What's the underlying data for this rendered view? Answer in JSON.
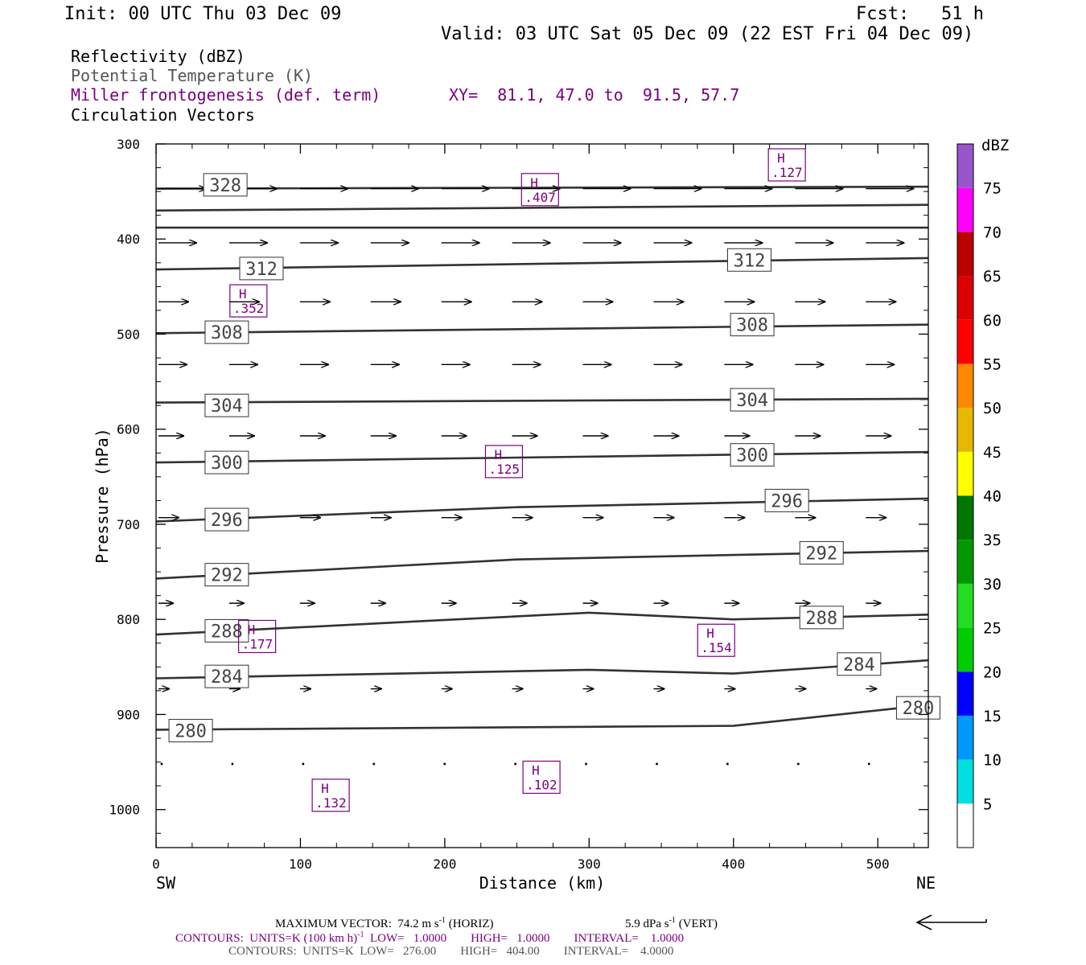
{
  "header": {
    "init": "Init: 00 UTC Thu 03 Dec 09",
    "fcst": "Fcst:   51 h",
    "valid": "Valid: 03 UTC Sat 05 Dec 09 (22 EST Fri 04 Dec 09)"
  },
  "fields": {
    "reflectivity": "Reflectivity (dBZ)",
    "theta": "Potential Temperature (K)",
    "miller": "Miller frontogenesis (def. term)",
    "xy": "XY=  81.1, 47.0 to  91.5, 57.7",
    "vectors": "Circulation Vectors"
  },
  "colors": {
    "purple": "#7a0080",
    "gray": "#555555"
  },
  "chart_data": {
    "type": "line",
    "xlabel": "Distance (km)",
    "ylabel": "Pressure (hPa)",
    "xlim": [
      0,
      535
    ],
    "ylim": [
      1040,
      300
    ],
    "x_ticks": [
      0,
      100,
      200,
      300,
      400,
      500
    ],
    "y_ticks": [
      300,
      400,
      500,
      600,
      700,
      800,
      900,
      1000
    ],
    "left_end_label": "SW",
    "right_end_label": "NE",
    "theta_contours": [
      {
        "label": "328",
        "points": [
          [
            0,
            347
          ],
          [
            535,
            345
          ]
        ],
        "label_at": [
          48,
          343
        ]
      },
      {
        "label": "",
        "points": [
          [
            0,
            370
          ],
          [
            535,
            364
          ]
        ]
      },
      {
        "label": "",
        "points": [
          [
            0,
            388
          ],
          [
            535,
            388
          ]
        ]
      },
      {
        "label": "312",
        "points": [
          [
            0,
            432
          ],
          [
            535,
            420
          ]
        ],
        "label_at": [
          73,
          431
        ]
      },
      {
        "label": "312",
        "points": [],
        "label_at": [
          411,
          422
        ]
      },
      {
        "label": "308",
        "points": [
          [
            0,
            499
          ],
          [
            535,
            490
          ]
        ],
        "label_at": [
          49,
          498
        ]
      },
      {
        "label": "308",
        "points": [],
        "label_at": [
          413,
          490
        ]
      },
      {
        "label": "304",
        "points": [
          [
            0,
            572
          ],
          [
            535,
            568
          ]
        ],
        "label_at": [
          49,
          575
        ]
      },
      {
        "label": "304",
        "points": [],
        "label_at": [
          413,
          569
        ]
      },
      {
        "label": "300",
        "points": [
          [
            0,
            635
          ],
          [
            535,
            624
          ]
        ],
        "label_at": [
          49,
          635
        ]
      },
      {
        "label": "300",
        "points": [],
        "label_at": [
          413,
          627
        ]
      },
      {
        "label": "296",
        "points": [
          [
            0,
            697
          ],
          [
            250,
            682
          ],
          [
            535,
            673
          ]
        ],
        "label_at": [
          49,
          695
        ]
      },
      {
        "label": "296",
        "points": [],
        "label_at": [
          437,
          675
        ]
      },
      {
        "label": "292",
        "points": [
          [
            0,
            757
          ],
          [
            250,
            737
          ],
          [
            535,
            728
          ]
        ],
        "label_at": [
          49,
          753
        ]
      },
      {
        "label": "292",
        "points": [],
        "label_at": [
          461,
          730
        ]
      },
      {
        "label": "288",
        "points": [
          [
            0,
            816
          ],
          [
            300,
            793
          ],
          [
            400,
            800
          ],
          [
            535,
            795
          ]
        ],
        "label_at": [
          49,
          812
        ]
      },
      {
        "label": "288",
        "points": [],
        "label_at": [
          461,
          798
        ]
      },
      {
        "label": "284",
        "points": [
          [
            0,
            862
          ],
          [
            300,
            853
          ],
          [
            400,
            857
          ],
          [
            535,
            843
          ]
        ],
        "label_at": [
          49,
          860
        ]
      },
      {
        "label": "284",
        "points": [],
        "label_at": [
          487,
          847
        ]
      },
      {
        "label": "280",
        "points": [
          [
            0,
            916
          ],
          [
            300,
            913
          ],
          [
            400,
            912
          ],
          [
            535,
            890
          ]
        ],
        "label_at": [
          24,
          917
        ]
      },
      {
        "label": "280",
        "points": [],
        "label_at": [
          528,
          893
        ]
      }
    ],
    "frontogenesis_maxima": [
      {
        "label": "H",
        "value": ".127",
        "x": 437,
        "p": 322
      },
      {
        "label": "H",
        "value": ".407",
        "x": 266,
        "p": 348
      },
      {
        "label": "H",
        "value": ".352",
        "x": 64,
        "p": 465
      },
      {
        "label": "H",
        "value": ".125",
        "x": 241,
        "p": 634
      },
      {
        "label": "H",
        "value": ".177",
        "x": 70,
        "p": 818
      },
      {
        "label": "H",
        "value": ".154",
        "x": 388,
        "p": 822
      },
      {
        "label": "H",
        "value": ".102",
        "x": 267,
        "p": 966
      },
      {
        "label": "H",
        "value": ".132",
        "x": 121,
        "p": 985
      }
    ],
    "vector_rows": [
      {
        "p": 347,
        "len": 52
      },
      {
        "p": 404,
        "len": 40
      },
      {
        "p": 466,
        "len": 30
      },
      {
        "p": 532,
        "len": 28
      },
      {
        "p": 607,
        "len": 24
      },
      {
        "p": 693,
        "len": 18
      },
      {
        "p": 783,
        "len": 11
      },
      {
        "p": 873,
        "len": 6
      },
      {
        "p": 952,
        "len": 3
      }
    ],
    "vector_x": [
      0,
      49,
      98,
      147,
      196,
      245,
      294,
      343,
      392,
      441,
      490
    ],
    "colorbar": {
      "unit": "dBZ",
      "levels": [
        "5",
        "10",
        "15",
        "20",
        "25",
        "30",
        "35",
        "40",
        "45",
        "50",
        "55",
        "60",
        "65",
        "70",
        "75"
      ],
      "colors": [
        "#00e0e0",
        "#0099ff",
        "#0000ff",
        "#00cc00",
        "#22dd22",
        "#009900",
        "#007700",
        "#ffff00",
        "#e6b800",
        "#ff8800",
        "#ff0000",
        "#dd0000",
        "#bb0000",
        "#ff00ff",
        "#9955cc"
      ]
    }
  },
  "footer": {
    "max_vector": "MAXIMUM VECTOR:  74.2 m s",
    "max_vector_sup": "-1",
    "max_vector_horiz": " (HORIZ)",
    "max_vector_vert": "5.9 dPa s",
    "max_vector_vert_sup": "-1",
    "max_vector_vert_tail": " (VERT)",
    "contours1": "CONTOURS:  UNITS=K (100 km h)",
    "contours1_sup": "-1",
    "contours1_tail": "  LOW=   1.0000        HIGH=   1.0000        INTERVAL=    1.0000",
    "contours2": "CONTOURS:  UNITS=K  LOW=   276.00        HIGH=   404.00        INTERVAL=    4.0000"
  }
}
